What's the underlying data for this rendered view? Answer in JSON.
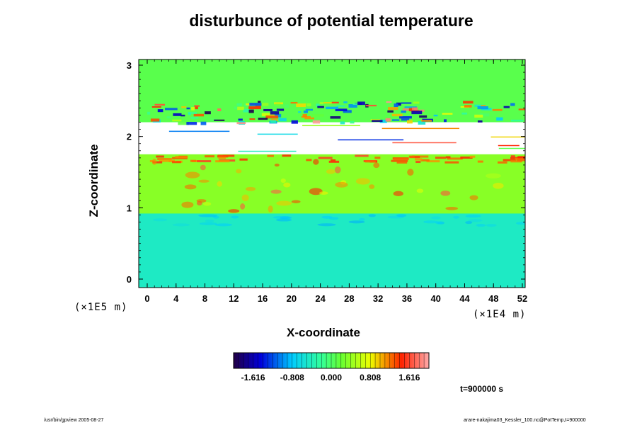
{
  "chart_data": {
    "type": "heatmap",
    "title": "disturbunce of potential temperature",
    "xlabel": "X-coordinate",
    "ylabel": "Z-coordinate",
    "x_unit_label": "(×1E4 m)",
    "y_unit_label": "(×1E5 m)",
    "xlim": [
      0,
      52
    ],
    "ylim": [
      0,
      3
    ],
    "x_ticks": [
      "0",
      "4",
      "8",
      "12",
      "16",
      "20",
      "24",
      "28",
      "32",
      "36",
      "40",
      "44",
      "48",
      "52"
    ],
    "y_ticks": [
      "0",
      "1",
      "2",
      "3"
    ],
    "colorbar": {
      "ticks": [
        "-1.616",
        "-0.808",
        "0.000",
        "0.808",
        "1.616"
      ],
      "range": [
        -2.02,
        2.02
      ]
    },
    "regions": [
      {
        "z_range": [
          0.0,
          0.92
        ],
        "value": -0.45,
        "description": "lower layer"
      },
      {
        "z_range": [
          0.92,
          1.75
        ],
        "value": 0.35,
        "description": "middle layer"
      },
      {
        "z_range": [
          1.75,
          2.2
        ],
        "value": null,
        "description": "masked band"
      },
      {
        "z_range": [
          2.2,
          3.0
        ],
        "value": 0.1,
        "description": "upper layer with wave disturbances"
      }
    ],
    "legend": "none",
    "grid": false
  },
  "annotations": {
    "time": "t=900000 s",
    "footer_left": "/usr/bin/gpview 2005-08-27",
    "footer_right": "arare-nakajima03_Kessler_100.nc@PotTemp,t=900000"
  },
  "colors": {
    "background_green": "#33ff33",
    "cold_cyan": "#33ffaa",
    "warm_yellow": "#aaff33",
    "hot_red": "#ff3300",
    "cold_blue": "#0033ff"
  }
}
